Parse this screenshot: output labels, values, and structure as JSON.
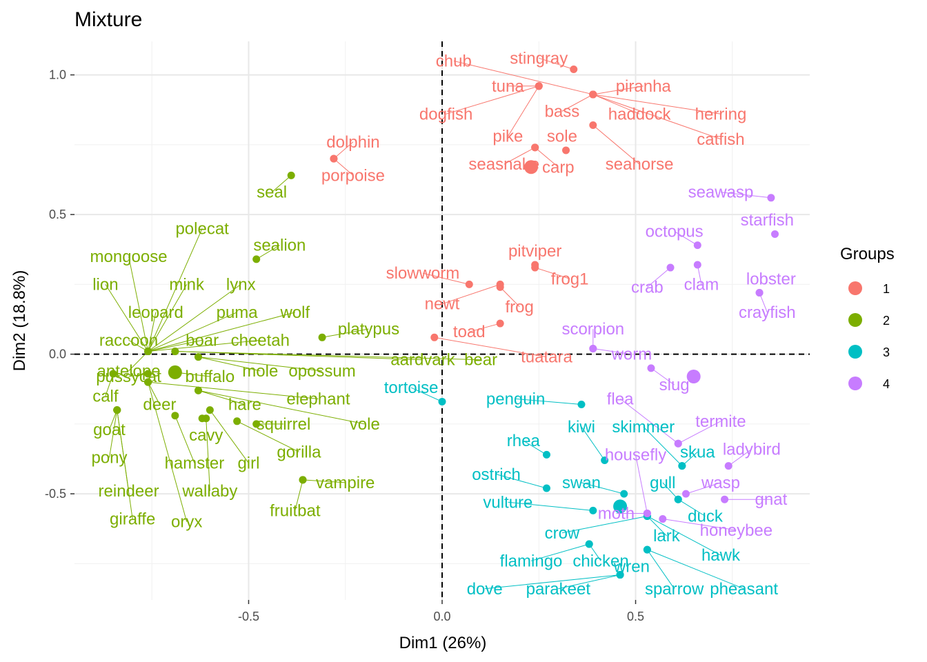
{
  "chart_data": {
    "type": "scatter",
    "title": "Mixture",
    "xlabel": "Dim1 (26%)",
    "ylabel": "Dim2 (18.8%)",
    "xlim": [
      -0.95,
      0.95
    ],
    "ylim": [
      -0.88,
      1.12
    ],
    "x_ticks": [
      {
        "value": -0.5,
        "label": "-0.5"
      },
      {
        "value": 0.0,
        "label": "0.0"
      },
      {
        "value": 0.5,
        "label": "0.5"
      }
    ],
    "y_ticks": [
      {
        "value": 1.0,
        "label": "1.0"
      },
      {
        "value": 0.5,
        "label": "0.5"
      },
      {
        "value": 0.0,
        "label": "0.0"
      },
      {
        "value": -0.5,
        "label": "-0.5"
      }
    ],
    "grid": true,
    "reference_lines": {
      "x": 0,
      "y": 0,
      "style": "dashed"
    },
    "legend": {
      "title": "Groups",
      "placement": "right",
      "entries": [
        {
          "label": "1",
          "color": "#F8766D"
        },
        {
          "label": "2",
          "color": "#7CAE00"
        },
        {
          "label": "3",
          "color": "#00BFC4"
        },
        {
          "label": "4",
          "color": "#C77CFF"
        }
      ]
    },
    "group_colors": {
      "1": "#F8766D",
      "2": "#7CAE00",
      "3": "#00BFC4",
      "4": "#C77CFF"
    },
    "centroids": [
      {
        "group": "1",
        "x": 0.23,
        "y": 0.67
      },
      {
        "group": "2",
        "x": -0.69,
        "y": -0.065
      },
      {
        "group": "3",
        "x": 0.46,
        "y": -0.545
      },
      {
        "group": "4",
        "x": 0.65,
        "y": -0.08
      }
    ],
    "points": [
      {
        "name": "stingray",
        "group": "1",
        "x": 0.34,
        "y": 1.02,
        "lx": 0.25,
        "ly": 1.06
      },
      {
        "name": "chub",
        "group": "1",
        "x": 0.39,
        "y": 0.93,
        "lx": 0.03,
        "ly": 1.05
      },
      {
        "name": "piranha",
        "group": "1",
        "x": 0.39,
        "y": 0.93,
        "lx": 0.52,
        "ly": 0.96
      },
      {
        "name": "tuna",
        "group": "1",
        "x": 0.25,
        "y": 0.96,
        "lx": 0.17,
        "ly": 0.96
      },
      {
        "name": "haddock",
        "group": "1",
        "x": 0.39,
        "y": 0.93,
        "lx": 0.51,
        "ly": 0.86
      },
      {
        "name": "herring",
        "group": "1",
        "x": 0.39,
        "y": 0.93,
        "lx": 0.72,
        "ly": 0.86
      },
      {
        "name": "bass",
        "group": "1",
        "x": 0.39,
        "y": 0.93,
        "lx": 0.31,
        "ly": 0.87
      },
      {
        "name": "dogfish",
        "group": "1",
        "x": 0.25,
        "y": 0.96,
        "lx": 0.01,
        "ly": 0.86
      },
      {
        "name": "pike",
        "group": "1",
        "x": 0.25,
        "y": 0.96,
        "lx": 0.17,
        "ly": 0.78
      },
      {
        "name": "catfish",
        "group": "1",
        "x": 0.39,
        "y": 0.93,
        "lx": 0.72,
        "ly": 0.77
      },
      {
        "name": "sole",
        "group": "1",
        "x": 0.32,
        "y": 0.73,
        "lx": 0.31,
        "ly": 0.78
      },
      {
        "name": "seahorse",
        "group": "1",
        "x": 0.39,
        "y": 0.82,
        "lx": 0.51,
        "ly": 0.68
      },
      {
        "name": "seasnake",
        "group": "1",
        "x": 0.24,
        "y": 0.74,
        "lx": 0.16,
        "ly": 0.68
      },
      {
        "name": "carp",
        "group": "1",
        "x": 0.24,
        "y": 0.74,
        "lx": 0.3,
        "ly": 0.67
      },
      {
        "name": "dolphin",
        "group": "1",
        "x": -0.28,
        "y": 0.7,
        "lx": -0.23,
        "ly": 0.76
      },
      {
        "name": "porpoise",
        "group": "1",
        "x": -0.28,
        "y": 0.7,
        "lx": -0.23,
        "ly": 0.64
      },
      {
        "name": "pitviper",
        "group": "1",
        "x": 0.24,
        "y": 0.32,
        "lx": 0.24,
        "ly": 0.37
      },
      {
        "name": "slowworm",
        "group": "1",
        "x": 0.07,
        "y": 0.25,
        "lx": -0.05,
        "ly": 0.29
      },
      {
        "name": "frog1",
        "group": "1",
        "x": 0.24,
        "y": 0.31,
        "lx": 0.33,
        "ly": 0.27
      },
      {
        "name": "newt",
        "group": "1",
        "x": 0.15,
        "y": 0.25,
        "lx": 0.0,
        "ly": 0.18
      },
      {
        "name": "frog",
        "group": "1",
        "x": 0.15,
        "y": 0.24,
        "lx": 0.2,
        "ly": 0.17
      },
      {
        "name": "toad",
        "group": "1",
        "x": 0.15,
        "y": 0.11,
        "lx": 0.07,
        "ly": 0.08
      },
      {
        "name": "tuatara",
        "group": "1",
        "x": -0.02,
        "y": 0.06,
        "lx": 0.27,
        "ly": -0.01
      },
      {
        "name": "seal",
        "group": "2",
        "x": -0.39,
        "y": 0.64,
        "lx": -0.44,
        "ly": 0.58
      },
      {
        "name": "sealion",
        "group": "2",
        "x": -0.48,
        "y": 0.34,
        "lx": -0.42,
        "ly": 0.39
      },
      {
        "name": "polecat",
        "group": "2",
        "x": -0.76,
        "y": 0.01,
        "lx": -0.62,
        "ly": 0.45
      },
      {
        "name": "mongoose",
        "group": "2",
        "x": -0.76,
        "y": 0.01,
        "lx": -0.81,
        "ly": 0.35
      },
      {
        "name": "lion",
        "group": "2",
        "x": -0.76,
        "y": 0.01,
        "lx": -0.87,
        "ly": 0.25
      },
      {
        "name": "mink",
        "group": "2",
        "x": -0.76,
        "y": 0.01,
        "lx": -0.66,
        "ly": 0.25
      },
      {
        "name": "lynx",
        "group": "2",
        "x": -0.76,
        "y": 0.01,
        "lx": -0.52,
        "ly": 0.25
      },
      {
        "name": "leopard",
        "group": "2",
        "x": -0.76,
        "y": 0.01,
        "lx": -0.74,
        "ly": 0.15
      },
      {
        "name": "puma",
        "group": "2",
        "x": -0.76,
        "y": 0.01,
        "lx": -0.53,
        "ly": 0.15
      },
      {
        "name": "wolf",
        "group": "2",
        "x": -0.76,
        "y": 0.01,
        "lx": -0.38,
        "ly": 0.15
      },
      {
        "name": "platypus",
        "group": "2",
        "x": -0.31,
        "y": 0.06,
        "lx": -0.19,
        "ly": 0.09
      },
      {
        "name": "raccoon",
        "group": "2",
        "x": -0.76,
        "y": 0.01,
        "lx": -0.81,
        "ly": 0.05
      },
      {
        "name": "boar",
        "group": "2",
        "x": -0.76,
        "y": 0.01,
        "lx": -0.62,
        "ly": 0.05
      },
      {
        "name": "cheetah",
        "group": "2",
        "x": -0.76,
        "y": 0.01,
        "lx": -0.47,
        "ly": 0.05
      },
      {
        "name": "aardvark",
        "group": "2",
        "x": -0.69,
        "y": 0.01,
        "lx": -0.05,
        "ly": -0.02
      },
      {
        "name": "bear",
        "group": "2",
        "x": -0.69,
        "y": 0.01,
        "lx": 0.1,
        "ly": -0.02
      },
      {
        "name": "antelope",
        "group": "2",
        "x": -0.76,
        "y": 0.01,
        "lx": -0.81,
        "ly": -0.06
      },
      {
        "name": "mole",
        "group": "2",
        "x": -0.63,
        "y": -0.01,
        "lx": -0.47,
        "ly": -0.06
      },
      {
        "name": "opossum",
        "group": "2",
        "x": -0.63,
        "y": -0.01,
        "lx": -0.31,
        "ly": -0.06
      },
      {
        "name": "buffalo",
        "group": "2",
        "x": -0.69,
        "y": -0.065,
        "lx": -0.6,
        "ly": -0.08
      },
      {
        "name": "pussycat",
        "group": "2",
        "x": -0.76,
        "y": -0.07,
        "lx": -0.81,
        "ly": -0.08
      },
      {
        "name": "calf",
        "group": "2",
        "x": -0.85,
        "y": -0.07,
        "lx": -0.87,
        "ly": -0.15
      },
      {
        "name": "elephant",
        "group": "2",
        "x": -0.76,
        "y": -0.1,
        "lx": -0.32,
        "ly": -0.16
      },
      {
        "name": "deer",
        "group": "2",
        "x": -0.76,
        "y": -0.1,
        "lx": -0.73,
        "ly": -0.18
      },
      {
        "name": "hare",
        "group": "2",
        "x": -0.63,
        "y": -0.13,
        "lx": -0.51,
        "ly": -0.18
      },
      {
        "name": "vole",
        "group": "2",
        "x": -0.63,
        "y": -0.13,
        "lx": -0.2,
        "ly": -0.25
      },
      {
        "name": "squirrel",
        "group": "2",
        "x": -0.48,
        "y": -0.25,
        "lx": -0.41,
        "ly": -0.25
      },
      {
        "name": "goat",
        "group": "2",
        "x": -0.84,
        "y": -0.2,
        "lx": -0.86,
        "ly": -0.27
      },
      {
        "name": "cavy",
        "group": "2",
        "x": -0.62,
        "y": -0.23,
        "lx": -0.61,
        "ly": -0.29
      },
      {
        "name": "pony",
        "group": "2",
        "x": -0.84,
        "y": -0.2,
        "lx": -0.86,
        "ly": -0.37
      },
      {
        "name": "gorilla",
        "group": "2",
        "x": -0.53,
        "y": -0.24,
        "lx": -0.37,
        "ly": -0.35
      },
      {
        "name": "hamster",
        "group": "2",
        "x": -0.69,
        "y": -0.22,
        "lx": -0.64,
        "ly": -0.39
      },
      {
        "name": "girl",
        "group": "2",
        "x": -0.6,
        "y": -0.2,
        "lx": -0.5,
        "ly": -0.39
      },
      {
        "name": "vampire",
        "group": "2",
        "x": -0.36,
        "y": -0.45,
        "lx": -0.25,
        "ly": -0.46
      },
      {
        "name": "reindeer",
        "group": "2",
        "x": -0.84,
        "y": -0.2,
        "lx": -0.81,
        "ly": -0.49
      },
      {
        "name": "wallaby",
        "group": "2",
        "x": -0.61,
        "y": -0.23,
        "lx": -0.6,
        "ly": -0.49
      },
      {
        "name": "fruitbat",
        "group": "2",
        "x": -0.36,
        "y": -0.45,
        "lx": -0.38,
        "ly": -0.56
      },
      {
        "name": "giraffe",
        "group": "2",
        "x": -0.84,
        "y": -0.2,
        "lx": -0.8,
        "ly": -0.59
      },
      {
        "name": "oryx",
        "group": "2",
        "x": -0.76,
        "y": -0.1,
        "lx": -0.66,
        "ly": -0.6
      },
      {
        "name": "tortoise",
        "group": "3",
        "x": 0.0,
        "y": -0.17,
        "lx": -0.08,
        "ly": -0.12
      },
      {
        "name": "penguin",
        "group": "3",
        "x": 0.36,
        "y": -0.18,
        "lx": 0.19,
        "ly": -0.16
      },
      {
        "name": "kiwi",
        "group": "3",
        "x": 0.42,
        "y": -0.38,
        "lx": 0.36,
        "ly": -0.26
      },
      {
        "name": "skimmer",
        "group": "3",
        "x": 0.62,
        "y": -0.4,
        "lx": 0.52,
        "ly": -0.26
      },
      {
        "name": "rhea",
        "group": "3",
        "x": 0.27,
        "y": -0.36,
        "lx": 0.21,
        "ly": -0.31
      },
      {
        "name": "skua",
        "group": "3",
        "x": 0.62,
        "y": -0.4,
        "lx": 0.66,
        "ly": -0.35
      },
      {
        "name": "ostrich",
        "group": "3",
        "x": 0.27,
        "y": -0.48,
        "lx": 0.14,
        "ly": -0.43
      },
      {
        "name": "swan",
        "group": "3",
        "x": 0.47,
        "y": -0.5,
        "lx": 0.36,
        "ly": -0.46
      },
      {
        "name": "gull",
        "group": "3",
        "x": 0.61,
        "y": -0.52,
        "lx": 0.57,
        "ly": -0.46
      },
      {
        "name": "vulture",
        "group": "3",
        "x": 0.39,
        "y": -0.56,
        "lx": 0.17,
        "ly": -0.53
      },
      {
        "name": "duck",
        "group": "3",
        "x": 0.61,
        "y": -0.52,
        "lx": 0.68,
        "ly": -0.58
      },
      {
        "name": "crow",
        "group": "3",
        "x": 0.53,
        "y": -0.58,
        "lx": 0.31,
        "ly": -0.64
      },
      {
        "name": "lark",
        "group": "3",
        "x": 0.53,
        "y": -0.58,
        "lx": 0.58,
        "ly": -0.65
      },
      {
        "name": "hawk",
        "group": "3",
        "x": 0.53,
        "y": -0.58,
        "lx": 0.72,
        "ly": -0.72
      },
      {
        "name": "flamingo",
        "group": "3",
        "x": 0.38,
        "y": -0.68,
        "lx": 0.23,
        "ly": -0.74
      },
      {
        "name": "chicken",
        "group": "3",
        "x": 0.38,
        "y": -0.68,
        "lx": 0.41,
        "ly": -0.74
      },
      {
        "name": "wren",
        "group": "3",
        "x": 0.46,
        "y": -0.79,
        "lx": 0.49,
        "ly": -0.76
      },
      {
        "name": "dove",
        "group": "3",
        "x": 0.46,
        "y": -0.79,
        "lx": 0.11,
        "ly": -0.84
      },
      {
        "name": "parakeet",
        "group": "3",
        "x": 0.46,
        "y": -0.79,
        "lx": 0.3,
        "ly": -0.84
      },
      {
        "name": "sparrow",
        "group": "3",
        "x": 0.53,
        "y": -0.7,
        "lx": 0.6,
        "ly": -0.84
      },
      {
        "name": "pheasant",
        "group": "3",
        "x": 0.53,
        "y": -0.7,
        "lx": 0.78,
        "ly": -0.84
      },
      {
        "name": "seawasp",
        "group": "4",
        "x": 0.85,
        "y": 0.56,
        "lx": 0.72,
        "ly": 0.58
      },
      {
        "name": "starfish",
        "group": "4",
        "x": 0.86,
        "y": 0.43,
        "lx": 0.84,
        "ly": 0.48
      },
      {
        "name": "octopus",
        "group": "4",
        "x": 0.66,
        "y": 0.39,
        "lx": 0.6,
        "ly": 0.44
      },
      {
        "name": "clam",
        "group": "4",
        "x": 0.66,
        "y": 0.32,
        "lx": 0.67,
        "ly": 0.25
      },
      {
        "name": "crab",
        "group": "4",
        "x": 0.59,
        "y": 0.31,
        "lx": 0.53,
        "ly": 0.24
      },
      {
        "name": "lobster",
        "group": "4",
        "x": 0.82,
        "y": 0.22,
        "lx": 0.85,
        "ly": 0.27
      },
      {
        "name": "crayfish",
        "group": "4",
        "x": 0.82,
        "y": 0.22,
        "lx": 0.84,
        "ly": 0.15
      },
      {
        "name": "scorpion",
        "group": "4",
        "x": 0.39,
        "y": 0.02,
        "lx": 0.39,
        "ly": 0.09
      },
      {
        "name": "worm",
        "group": "4",
        "x": 0.39,
        "y": 0.02,
        "lx": 0.49,
        "ly": 0.0
      },
      {
        "name": "slug",
        "group": "4",
        "x": 0.54,
        "y": -0.05,
        "lx": 0.6,
        "ly": -0.11
      },
      {
        "name": "flea",
        "group": "4",
        "x": 0.61,
        "y": -0.32,
        "lx": 0.46,
        "ly": -0.16
      },
      {
        "name": "termite",
        "group": "4",
        "x": 0.61,
        "y": -0.32,
        "lx": 0.72,
        "ly": -0.24
      },
      {
        "name": "ladybird",
        "group": "4",
        "x": 0.74,
        "y": -0.4,
        "lx": 0.8,
        "ly": -0.34
      },
      {
        "name": "housefly",
        "group": "4",
        "x": 0.53,
        "y": -0.57,
        "lx": 0.5,
        "ly": -0.36
      },
      {
        "name": "wasp",
        "group": "4",
        "x": 0.63,
        "y": -0.5,
        "lx": 0.72,
        "ly": -0.46
      },
      {
        "name": "gnat",
        "group": "4",
        "x": 0.73,
        "y": -0.52,
        "lx": 0.85,
        "ly": -0.52
      },
      {
        "name": "moth",
        "group": "4",
        "x": 0.53,
        "y": -0.57,
        "lx": 0.45,
        "ly": -0.57
      },
      {
        "name": "honeybee",
        "group": "4",
        "x": 0.57,
        "y": -0.59,
        "lx": 0.76,
        "ly": -0.63
      }
    ]
  }
}
